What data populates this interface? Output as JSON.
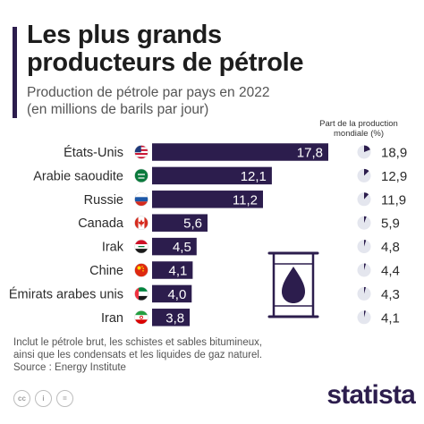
{
  "header": {
    "title_line1": "Les plus grands",
    "title_line2": "producteurs de pétrole",
    "subtitle_line1": "Production de pétrole par pays en 2022",
    "subtitle_line2": "(en millions de barils par jour)",
    "share_label_line1": "Part de la production",
    "share_label_line2": "mondiale (%)"
  },
  "chart_data": {
    "type": "bar",
    "orientation": "horizontal",
    "categories": [
      "États-Unis",
      "Arabie saoudite",
      "Russie",
      "Canada",
      "Irak",
      "Chine",
      "Émirats arabes unis",
      "Iran"
    ],
    "values": [
      17.8,
      12.1,
      11.2,
      5.6,
      4.5,
      4.1,
      4.0,
      3.8
    ],
    "value_labels": [
      "17,8",
      "12,1",
      "11,2",
      "5,6",
      "4,5",
      "4,1",
      "4,0",
      "3,8"
    ],
    "share_values": [
      18.9,
      12.9,
      11.9,
      5.9,
      4.8,
      4.4,
      4.3,
      4.1
    ],
    "share_labels": [
      "18,9",
      "12,9",
      "11,9",
      "5,9",
      "4,8",
      "4,4",
      "4,3",
      "4,1"
    ],
    "flags": [
      "us-flag-icon",
      "saudi-arabia-flag-icon",
      "russia-flag-icon",
      "canada-flag-icon",
      "iraq-flag-icon",
      "china-flag-icon",
      "uae-flag-icon",
      "iran-flag-icon"
    ],
    "bar_color": "#2c1d4d",
    "grid": false
  },
  "footer": {
    "note_line1": "Inclut le pétrole brut, les schistes et sables bitumineux,",
    "note_line2": "ainsi que les condensats et les liquides de gaz naturel.",
    "source": "Source : Energy Institute",
    "logo": "statista"
  },
  "icons": {
    "decoration": "oil-barrel-icon",
    "license": [
      "creative-commons-icon",
      "info-icon",
      "equals-icon"
    ]
  }
}
